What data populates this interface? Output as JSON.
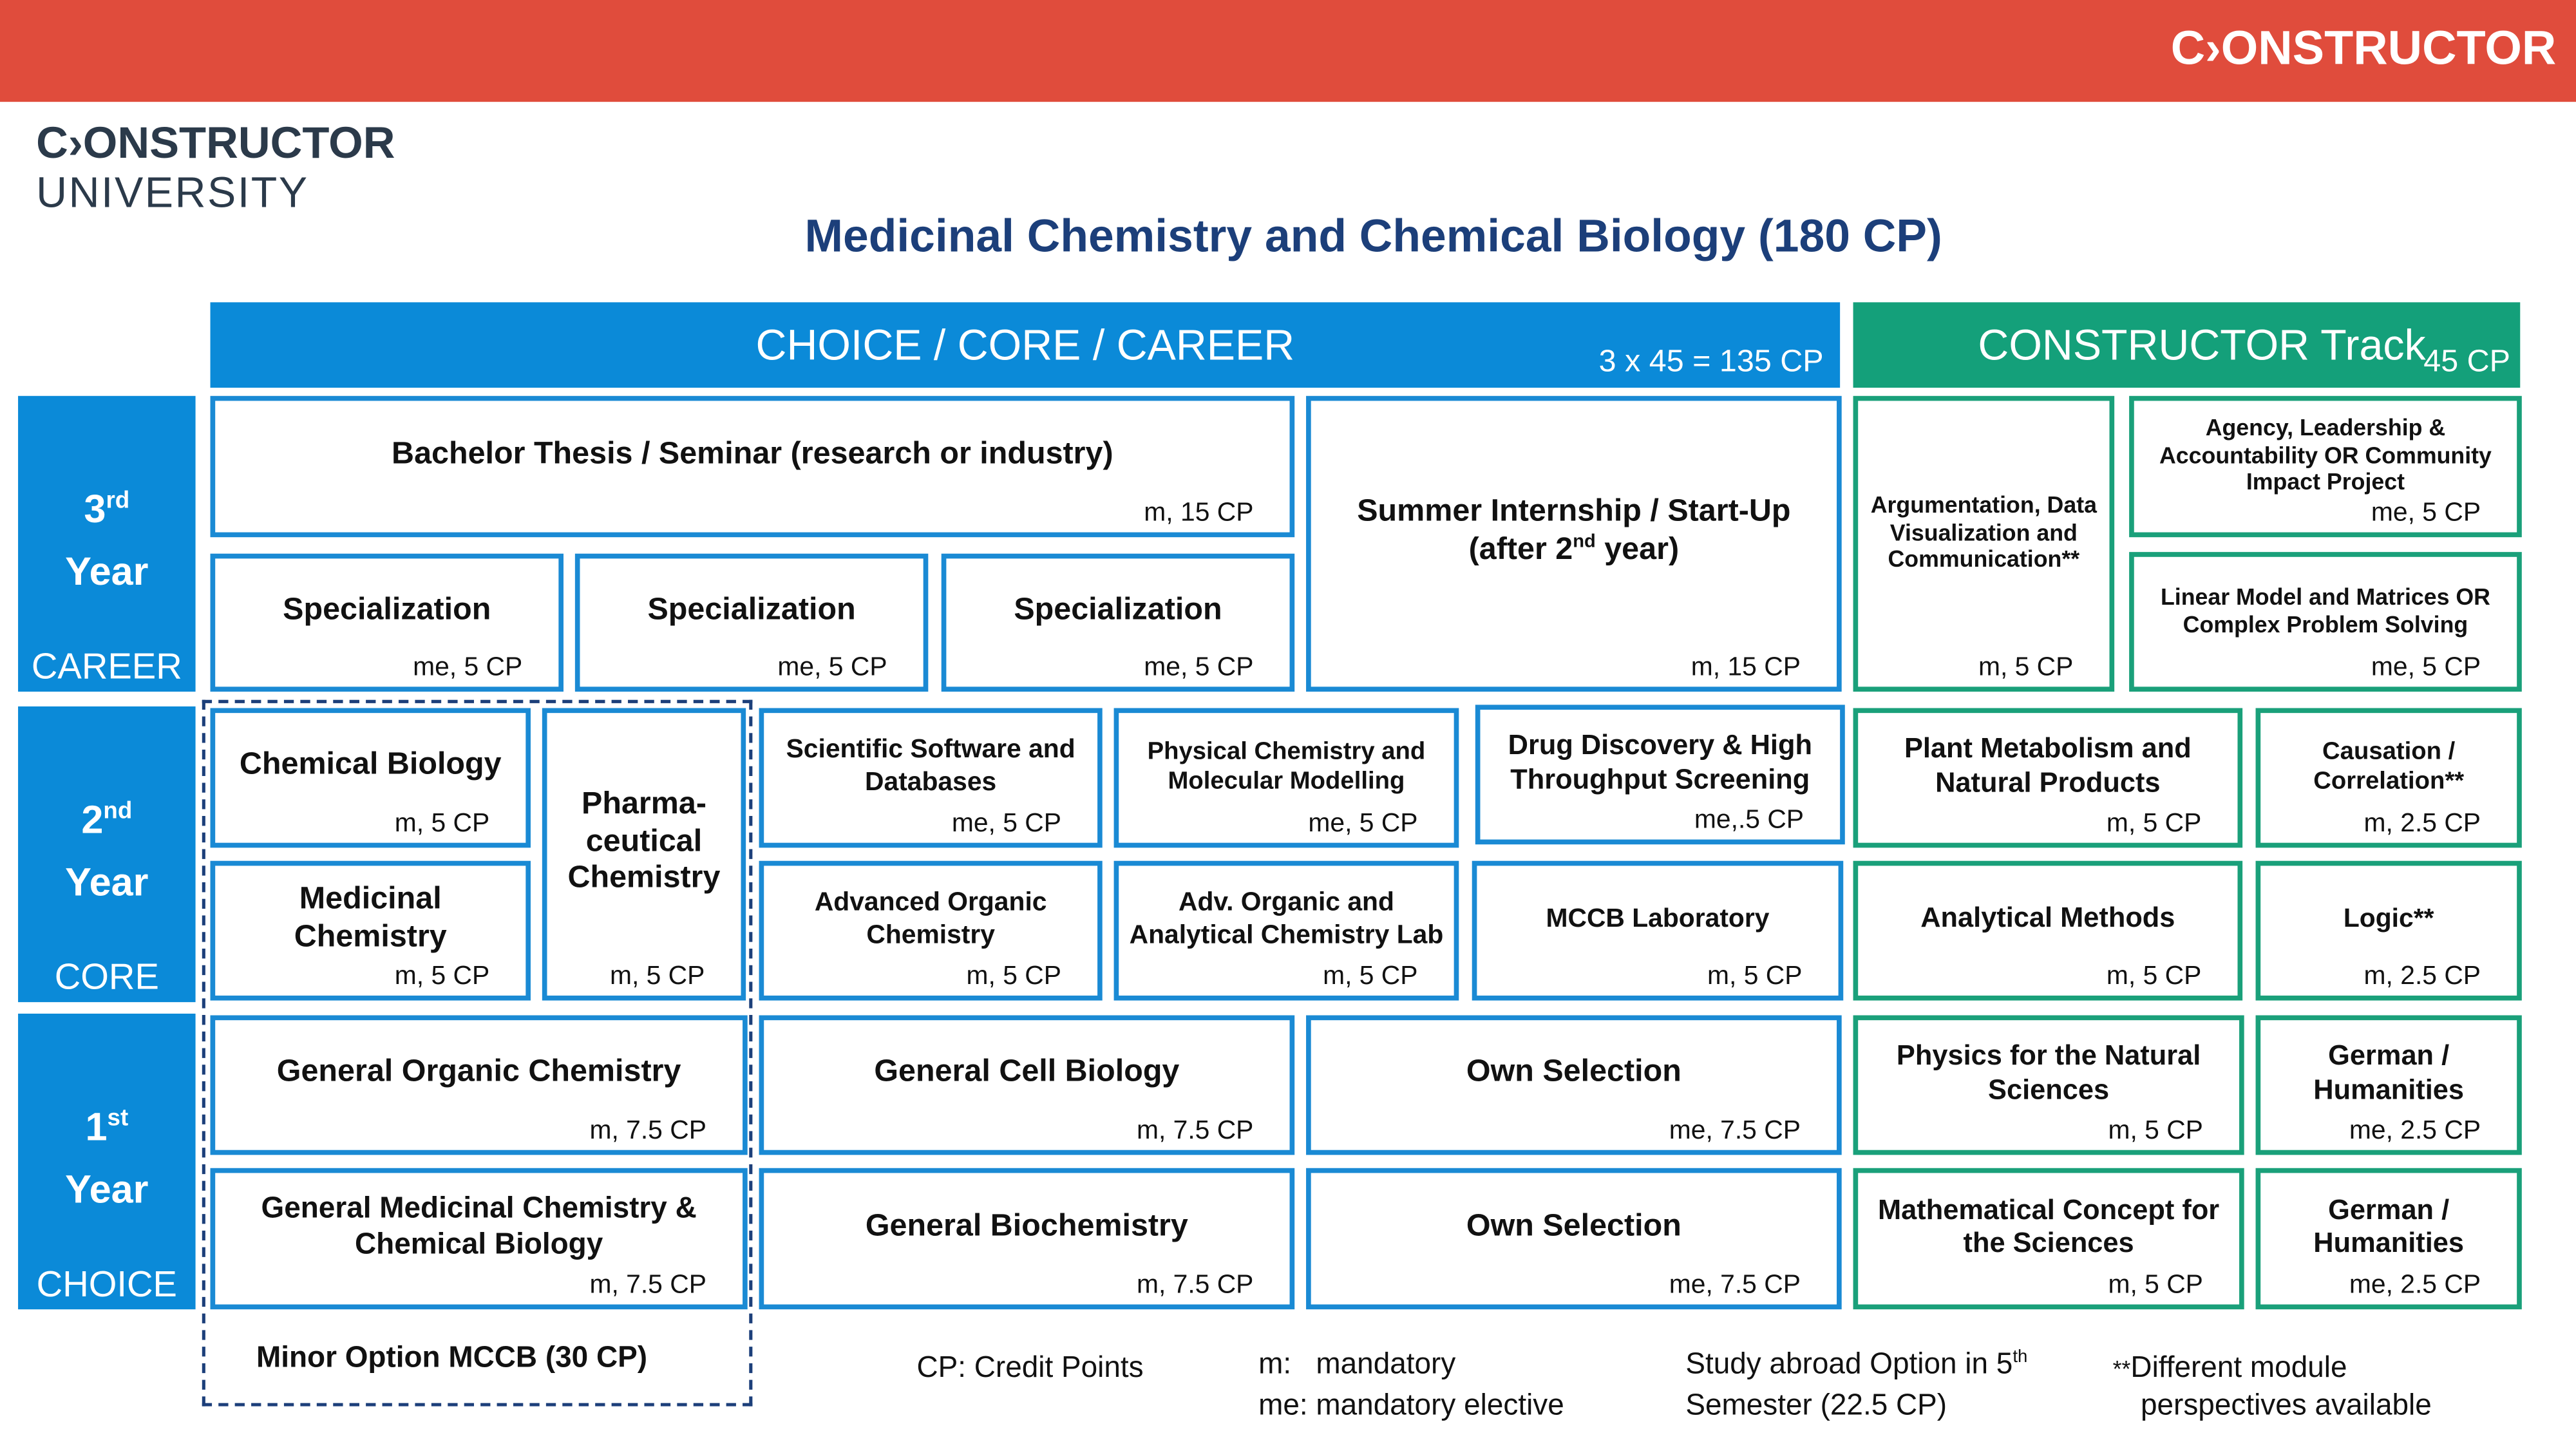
{
  "header": {
    "brand": "C›ONSTRUCTOR",
    "logo_top": "C›ONSTRUCTOR",
    "logo_bottom": "UNIVERSITY",
    "title": "Medicinal Chemistry and Chemical Biology  (180 CP)"
  },
  "sections": {
    "main": {
      "title": "CHOICE / CORE / CAREER",
      "credits": "3 x 45 = 135 CP"
    },
    "track": {
      "title": "CONSTRUCTOR Track",
      "credits": "45 CP"
    }
  },
  "years": [
    {
      "number": "3",
      "suffix": "rd",
      "word": "Year",
      "label": "CAREER"
    },
    {
      "number": "2",
      "suffix": "nd",
      "word": "Year",
      "label": "CORE"
    },
    {
      "number": "1",
      "suffix": "st",
      "word": "Year",
      "label": "CHOICE"
    }
  ],
  "modules": [
    {
      "name": "Bachelor Thesis / Seminar (research or industry)",
      "credit": "m, 15 CP"
    },
    {
      "name": "Specialization",
      "credit": "me, 5 CP"
    },
    {
      "name": "Specialization",
      "credit": "me, 5 CP"
    },
    {
      "name": "Specialization",
      "credit": "me, 5 CP"
    },
    {
      "name": "Summer Internship /  Start-Up",
      "note": [
        "(after 2",
        "nd",
        " year)"
      ],
      "credit": "m, 15 CP"
    },
    {
      "name": "Argumentation, Data Visualization and Communication**",
      "credit": "m, 5 CP"
    },
    {
      "name": "Agency, Leadership & Accountability OR Community Impact Project",
      "credit": "me, 5 CP"
    },
    {
      "name": "Linear Model and Matrices OR Complex Problem Solving",
      "credit": "me, 5 CP"
    },
    {
      "name": "Chemical Biology",
      "credit": "m, 5 CP"
    },
    {
      "name": "Pharma-ceutical Chemistry",
      "credit": "m, 5 CP"
    },
    {
      "name": "Medicinal Chemistry",
      "credit": "m, 5 CP"
    },
    {
      "name": "Scientific Software and Databases",
      "credit": "me, 5 CP"
    },
    {
      "name": "Physical Chemistry and Molecular Modelling",
      "credit": "me, 5 CP"
    },
    {
      "name": "Drug Discovery & High Throughput Screening",
      "credit": "me,.5 CP"
    },
    {
      "name": "Advanced Organic Chemistry",
      "credit": "m, 5 CP"
    },
    {
      "name": "Adv. Organic and Analytical Chemistry Lab",
      "credit": "m, 5 CP"
    },
    {
      "name": "MCCB Laboratory",
      "credit": "m, 5 CP"
    },
    {
      "name": "Plant Metabolism and Natural Products",
      "credit": "m, 5 CP"
    },
    {
      "name": "Causation / Correlation**",
      "credit": "m, 2.5 CP"
    },
    {
      "name": "Analytical Methods",
      "credit": "m, 5 CP"
    },
    {
      "name": "Logic**",
      "credit": "m, 2.5 CP"
    },
    {
      "name": "General Organic Chemistry",
      "credit": "m, 7.5 CP"
    },
    {
      "name": "General Cell Biology",
      "credit": "m, 7.5 CP"
    },
    {
      "name": "Own Selection",
      "credit": "me, 7.5 CP"
    },
    {
      "name": "Physics for the Natural Sciences",
      "credit": "m, 5 CP"
    },
    {
      "name": "German / Humanities",
      "credit": "me, 2.5 CP"
    },
    {
      "name": "General Medicinal Chemistry & Chemical Biology",
      "credit": "m, 7.5 CP"
    },
    {
      "name": "General Biochemistry",
      "credit": "m, 7.5 CP"
    },
    {
      "name": "Own Selection",
      "credit": "me, 7.5 CP"
    },
    {
      "name": "Mathematical Concept for the Sciences",
      "credit": "m, 5 CP"
    },
    {
      "name": "German / Humanities",
      "credit": "me, 2.5 CP"
    }
  ],
  "minor": "Minor Option MCCB (30 CP)",
  "legend": {
    "cp": "CP: Credit Points",
    "m": "m:   mandatory",
    "me": "me: mandatory elective",
    "abroad": [
      "Study abroad Option in 5",
      "th",
      "Semester (22.5 CP)"
    ],
    "note": [
      "**",
      "Different module",
      "perspectives available"
    ]
  }
}
